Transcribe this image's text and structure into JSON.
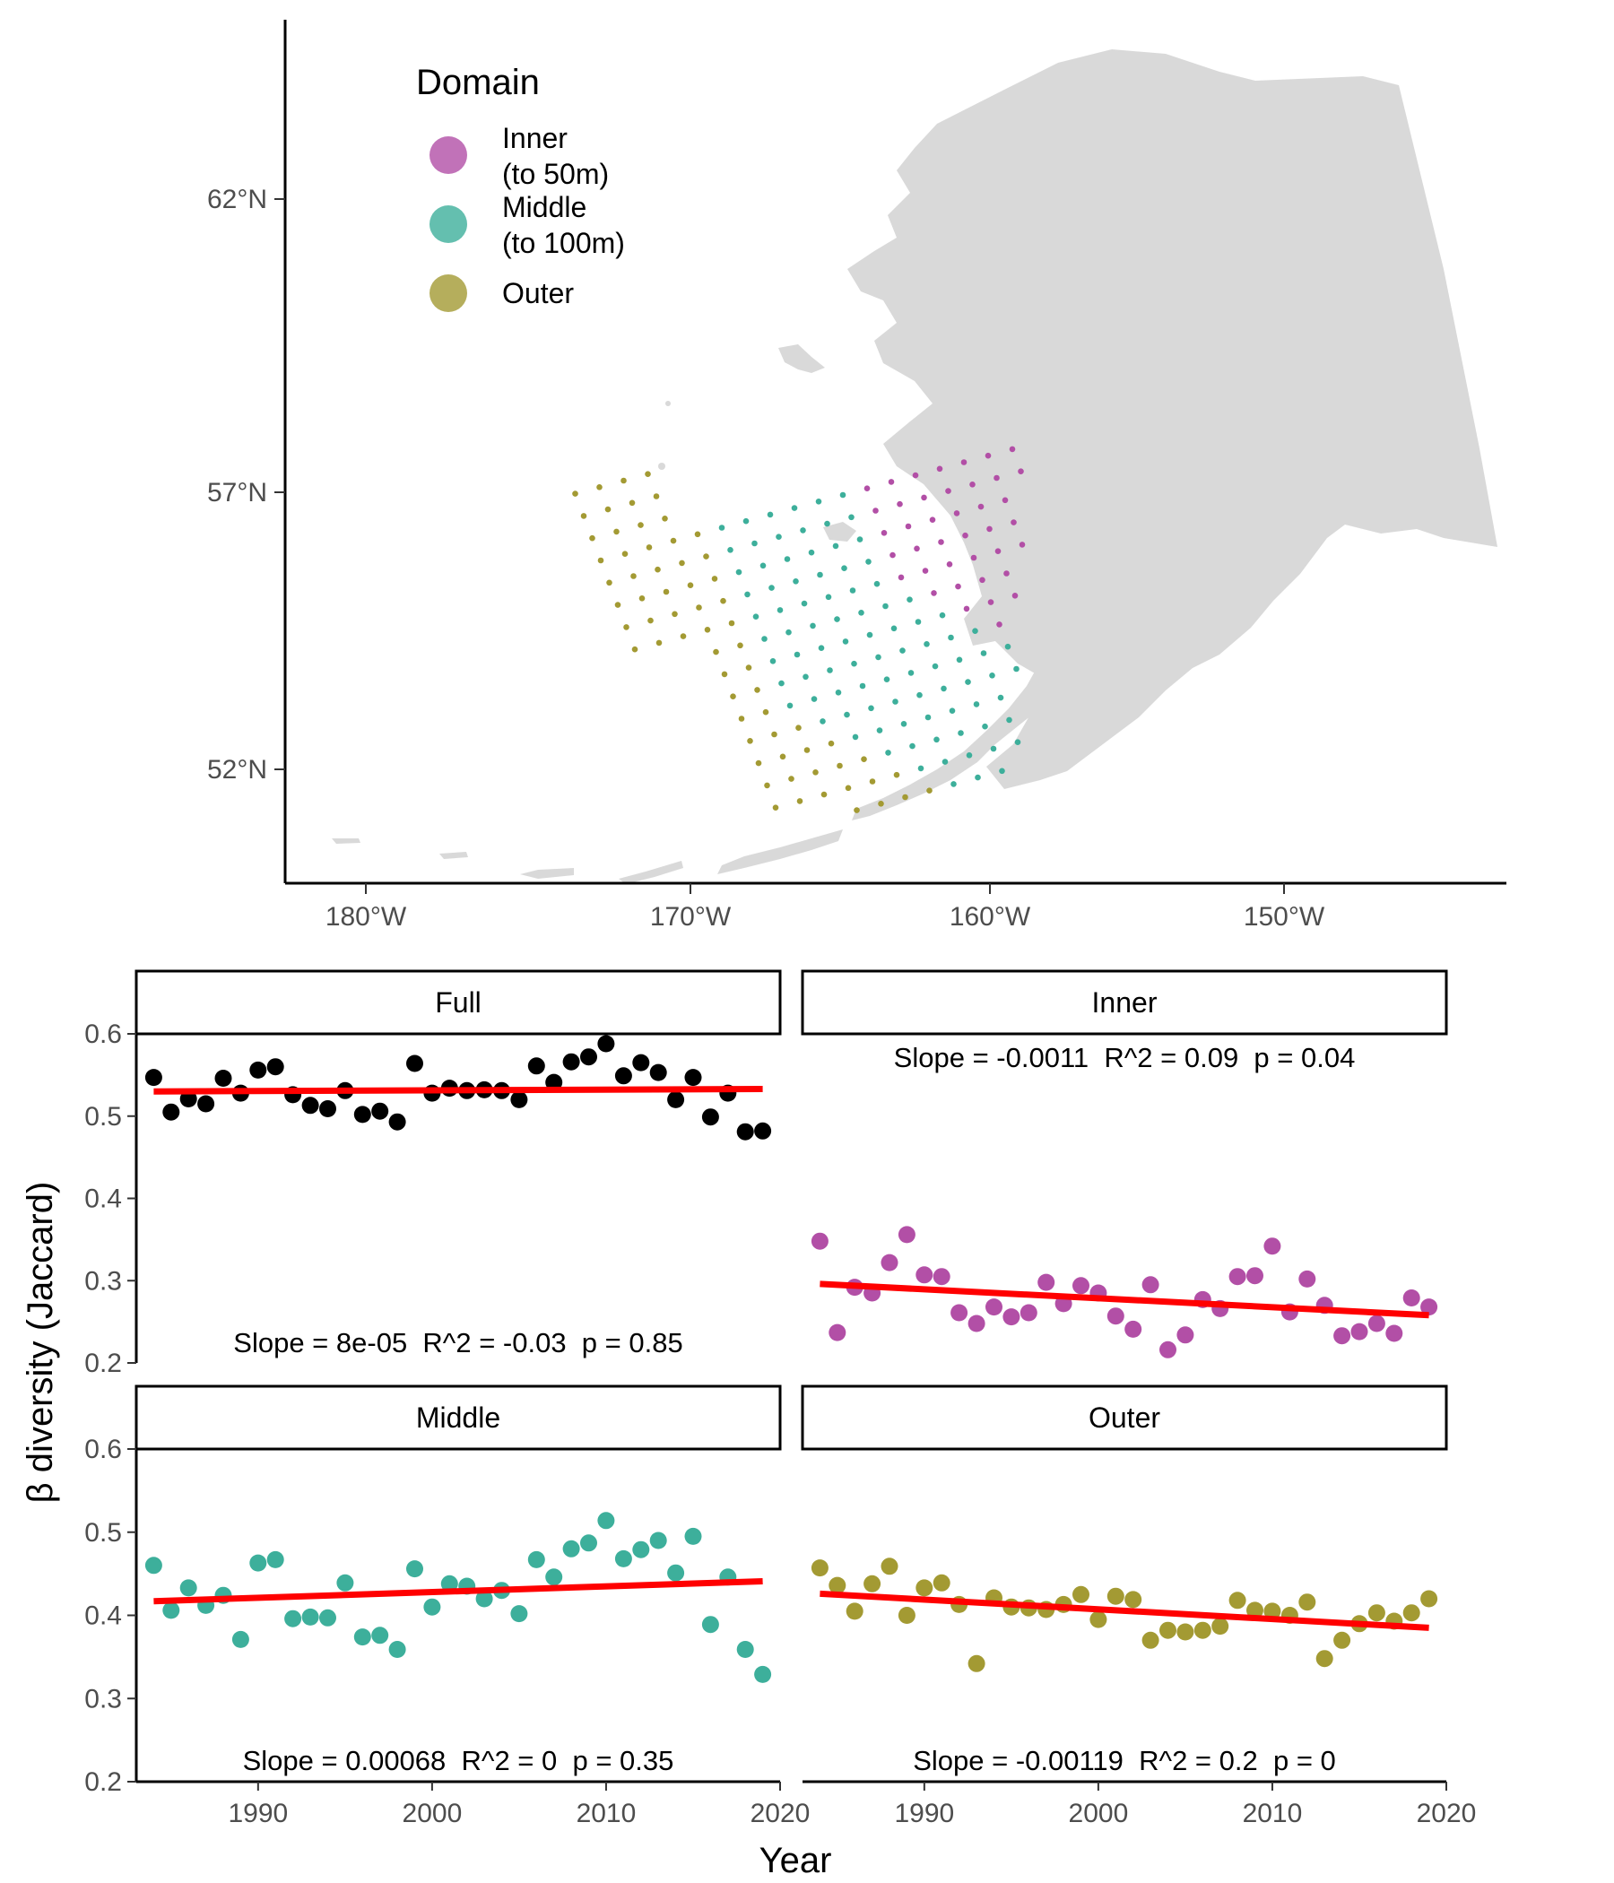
{
  "map": {
    "legend": {
      "title": "Domain",
      "items": [
        {
          "label_line1": "Inner",
          "label_line2": "(to 50m)",
          "color": "#b24fa6"
        },
        {
          "label_line1": "Middle",
          "label_line2": "(to 100m)",
          "color": "#3daf9b"
        },
        {
          "label_line1": "Outer",
          "label_line2": "",
          "color": "#a39a33"
        }
      ]
    },
    "lat_ticks": [
      "62°N",
      "57°N",
      "52°N"
    ],
    "lon_ticks": [
      "180°W",
      "170°W",
      "160°W",
      "150°W"
    ],
    "land_color": "#d9d9d9"
  },
  "chart_data": {
    "type": "scatter",
    "ylabel": "β diversity (Jaccard)",
    "xlabel": "Year",
    "ylim": [
      0.2,
      0.6
    ],
    "yticks": [
      "0.2",
      "0.3",
      "0.4",
      "0.5",
      "0.6"
    ],
    "xlim": [
      1983,
      2020
    ],
    "xticks": [
      "1990",
      "2000",
      "2010",
      "2020"
    ],
    "trend_color": "#ff0000",
    "years": [
      1984,
      1985,
      1986,
      1987,
      1988,
      1989,
      1990,
      1991,
      1992,
      1993,
      1994,
      1995,
      1996,
      1997,
      1998,
      1999,
      2000,
      2001,
      2002,
      2003,
      2004,
      2005,
      2006,
      2007,
      2008,
      2009,
      2010,
      2011,
      2012,
      2013,
      2014,
      2015,
      2016,
      2017,
      2018,
      2019
    ],
    "panels": [
      {
        "name": "Full",
        "color": "#000000",
        "stats": "Slope = 8e-05  R^2 = -0.03  p = 0.85",
        "trend": [
          0.53,
          0.533
        ],
        "values": [
          0.547,
          0.505,
          0.521,
          0.515,
          0.546,
          0.528,
          0.556,
          0.56,
          0.526,
          0.513,
          0.509,
          0.531,
          0.502,
          0.506,
          0.493,
          0.564,
          0.528,
          0.534,
          0.531,
          0.532,
          0.531,
          0.52,
          0.561,
          0.541,
          0.566,
          0.572,
          0.588,
          0.549,
          0.565,
          0.553,
          0.52,
          0.547,
          0.499,
          0.528,
          0.481,
          0.482
        ]
      },
      {
        "name": "Inner",
        "color": "#b24fa6",
        "stats": "Slope = -0.0011  R^2 = 0.09  p = 0.04",
        "trend": [
          0.296,
          0.258
        ],
        "values": [
          0.348,
          0.237,
          0.292,
          0.285,
          0.322,
          0.356,
          0.307,
          0.305,
          0.261,
          0.248,
          0.268,
          0.256,
          0.261,
          0.298,
          0.272,
          0.294,
          0.285,
          0.257,
          0.241,
          0.295,
          0.216,
          0.234,
          0.277,
          0.266,
          0.305,
          0.306,
          0.342,
          0.262,
          0.302,
          0.27,
          0.233,
          0.238,
          0.248,
          0.236,
          0.279,
          0.268
        ]
      },
      {
        "name": "Middle",
        "color": "#3daf9b",
        "stats": "Slope = 0.00068  R^2 = 0  p = 0.35",
        "trend": [
          0.417,
          0.441
        ],
        "values": [
          0.46,
          0.406,
          0.433,
          0.412,
          0.424,
          0.371,
          0.463,
          0.467,
          0.396,
          0.398,
          0.397,
          0.439,
          0.374,
          0.376,
          0.359,
          0.456,
          0.41,
          0.438,
          0.435,
          0.42,
          0.43,
          0.402,
          0.467,
          0.446,
          0.48,
          0.487,
          0.514,
          0.468,
          0.479,
          0.49,
          0.451,
          0.495,
          0.389,
          0.446,
          0.359,
          0.329
        ]
      },
      {
        "name": "Outer",
        "color": "#a39a33",
        "stats": "Slope = -0.00119  R^2 = 0.2  p = 0",
        "trend": [
          0.426,
          0.385
        ],
        "values": [
          0.457,
          0.436,
          0.405,
          0.438,
          0.459,
          0.4,
          0.433,
          0.439,
          0.413,
          0.342,
          0.421,
          0.41,
          0.409,
          0.407,
          0.413,
          0.425,
          0.395,
          0.423,
          0.419,
          0.37,
          0.382,
          0.38,
          0.382,
          0.387,
          0.418,
          0.406,
          0.405,
          0.4,
          0.416,
          0.348,
          0.37,
          0.39,
          0.403,
          0.393,
          0.403,
          0.42
        ]
      }
    ]
  }
}
